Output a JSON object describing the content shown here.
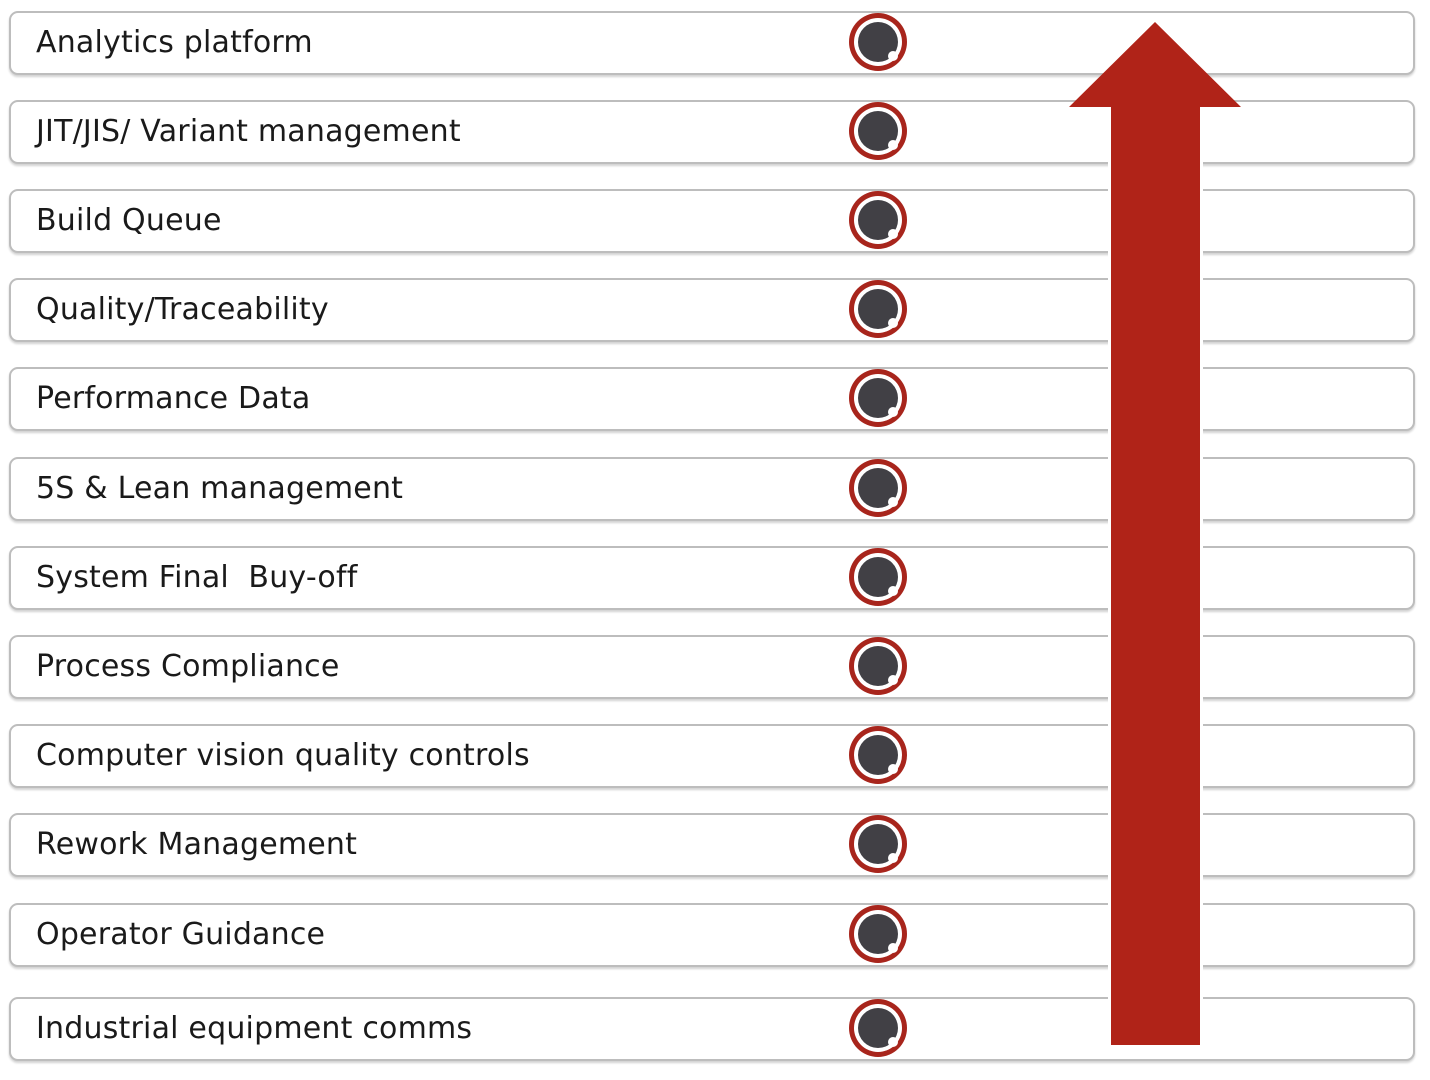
{
  "diagram": {
    "items": [
      {
        "label": "Analytics platform"
      },
      {
        "label": "JIT/JIS/ Variant management"
      },
      {
        "label": "Build Queue"
      },
      {
        "label": "Quality/Traceability"
      },
      {
        "label": "Performance Data"
      },
      {
        "label": "5S & Lean management"
      },
      {
        "label": "System Final  Buy-off"
      },
      {
        "label": "Process Compliance"
      },
      {
        "label": "Computer vision quality controls"
      },
      {
        "label": "Rework Management"
      },
      {
        "label": "Operator Guidance"
      },
      {
        "label": "Industrial equipment comms"
      }
    ],
    "colors": {
      "arrow": "#b02318",
      "marker_ring": "#a8251c",
      "marker_fill": "#414045",
      "row_border": "#bdbdbd",
      "text": "#1a1a1a"
    },
    "icons": {
      "marker": "circle-marker-icon",
      "arrow": "up-arrow-icon"
    }
  }
}
